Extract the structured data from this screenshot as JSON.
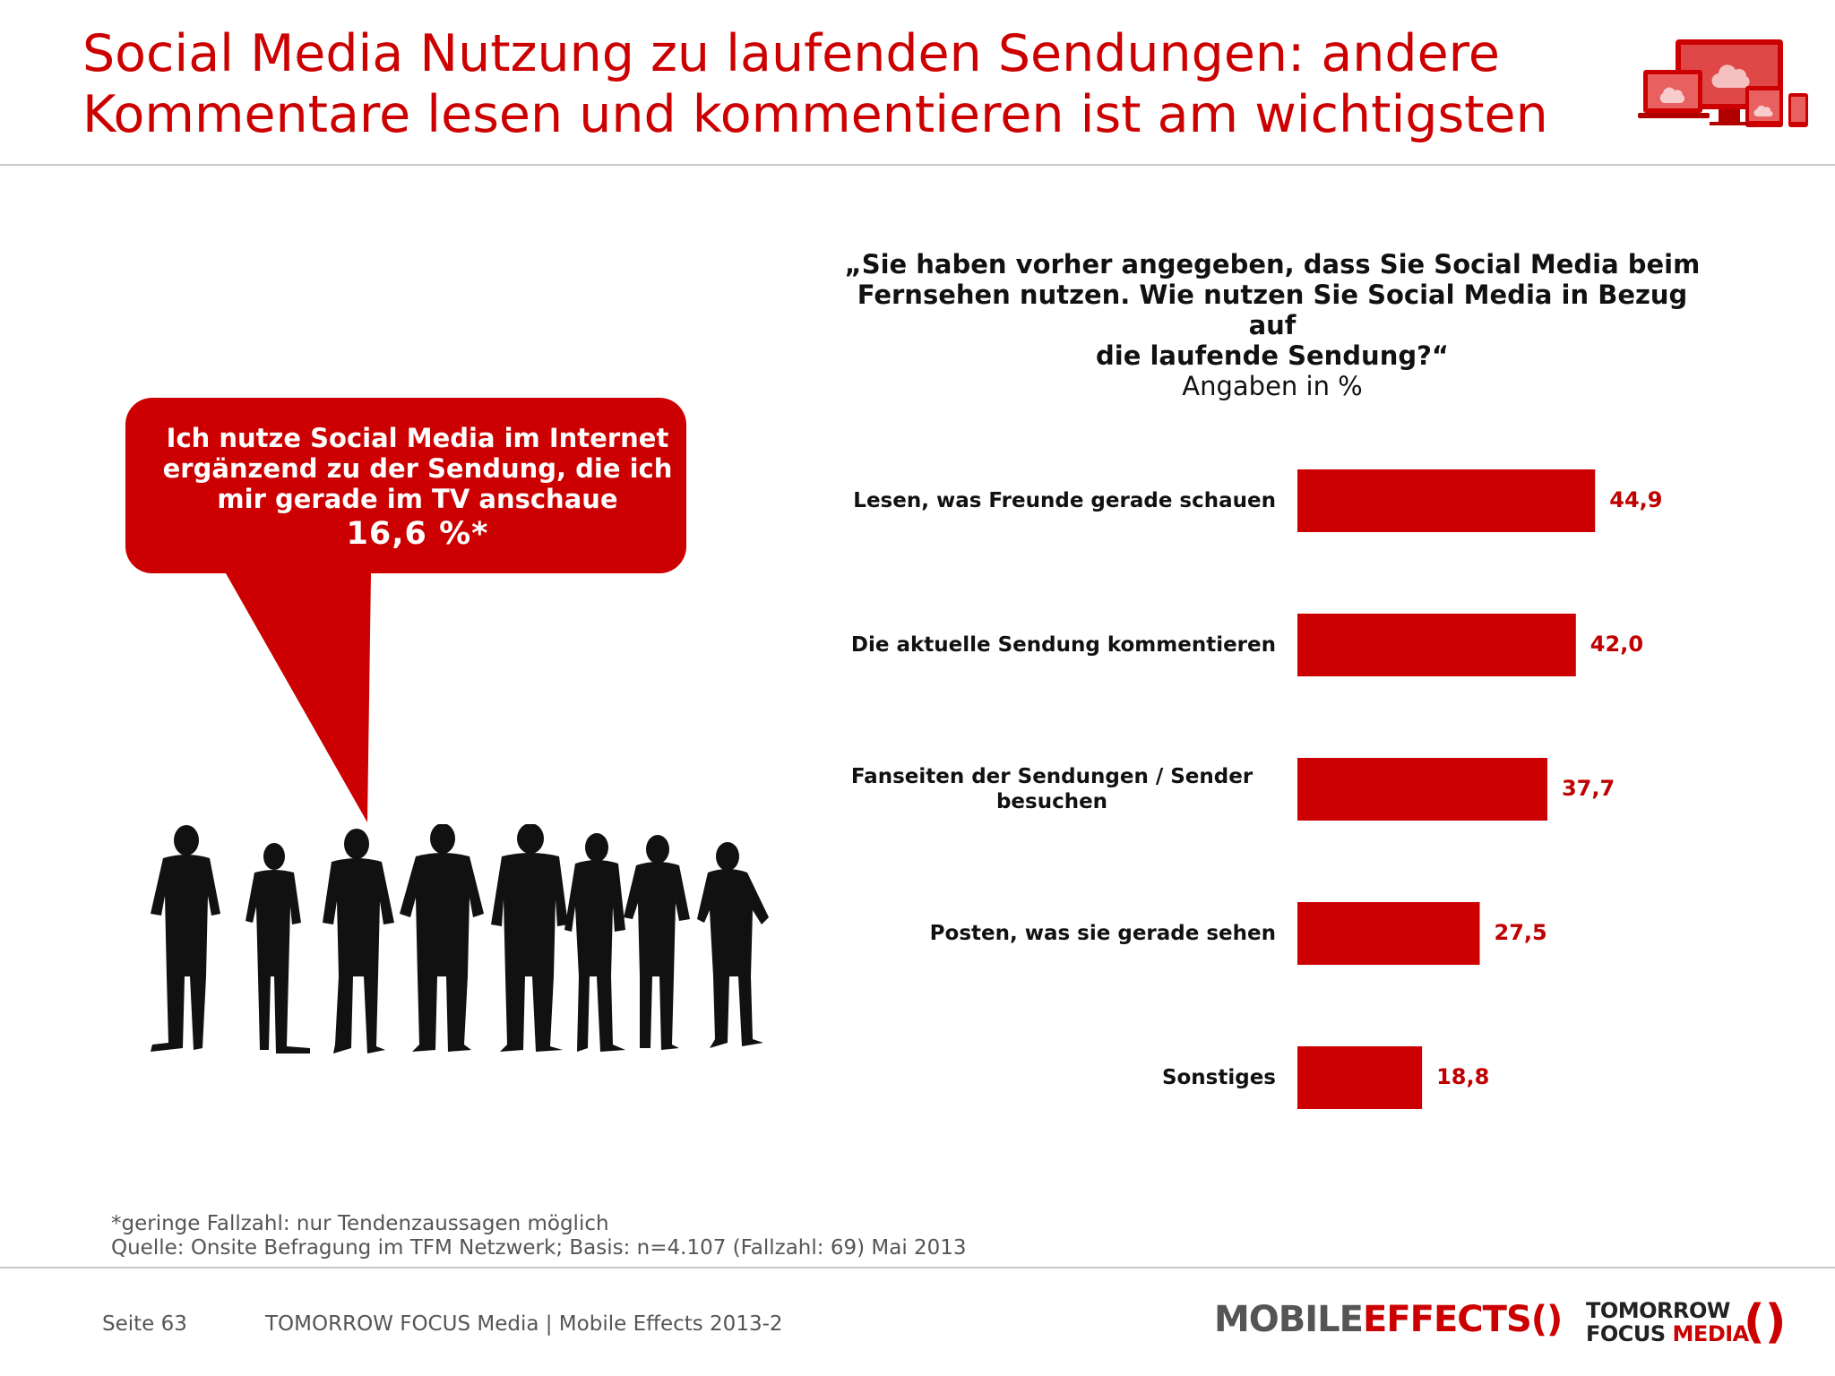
{
  "header": {
    "title_line1": "Social Media Nutzung zu laufenden Sendungen: andere",
    "title_line2": "Kommentare lesen und kommentieren ist am wichtigsten",
    "icon": "devices-cloud-icon"
  },
  "callout": {
    "line1": "Ich nutze Social Media im Internet",
    "line2": "ergänzend zu der Sendung, die ich",
    "line3": "mir gerade im TV anschaue",
    "value": "16,6 %*"
  },
  "chart_data": {
    "type": "bar",
    "orientation": "horizontal",
    "title_line1": "„Sie haben vorher angegeben, dass Sie Social Media beim",
    "title_line2": "Fernsehen nutzen. Wie nutzen Sie Social Media in Bezug auf",
    "title_line3": "die laufende Sendung?“",
    "subtitle": "Angaben in %",
    "categories": [
      "Lesen, was Freunde gerade schauen",
      "Die aktuelle Sendung kommentieren",
      "Fanseiten der Sendungen / Sender besuchen",
      "Posten, was sie gerade sehen",
      "Sonstiges"
    ],
    "category_lines": [
      [
        "Lesen, was Freunde gerade schauen"
      ],
      [
        "Die aktuelle Sendung kommentieren"
      ],
      [
        "Fanseiten der Sendungen / Sender",
        "besuchen"
      ],
      [
        "Posten, was sie gerade sehen"
      ],
      [
        "Sonstiges"
      ]
    ],
    "values": [
      44.9,
      42.0,
      37.7,
      27.5,
      18.8
    ],
    "value_labels": [
      "44,9",
      "42,0",
      "37,7",
      "27,5",
      "18,8"
    ],
    "xlim": [
      0,
      100
    ],
    "bar_color": "#cc0000",
    "label_color": "#c00000",
    "grid": false,
    "legend": "none"
  },
  "footnote": {
    "line1": "*geringe Fallzahl: nur Tendenzaussagen möglich",
    "line2": "Quelle: Onsite Befragung im TFM Netzwerk; Basis: n=4.107 (Fallzahl: 69) Mai 2013"
  },
  "footer": {
    "page": "Seite 63",
    "company": "TOMORROW FOCUS Media  |  Mobile Effects 2013-2",
    "logo1_part1": "MOBILE",
    "logo1_part2": "EFFECTS",
    "logo2_line1": "TOMORROW",
    "logo2_line2a": "FOCUS ",
    "logo2_line2b": "MEDIA"
  },
  "colors": {
    "accent": "#cc0000",
    "text": "#111111",
    "muted": "#555555"
  }
}
